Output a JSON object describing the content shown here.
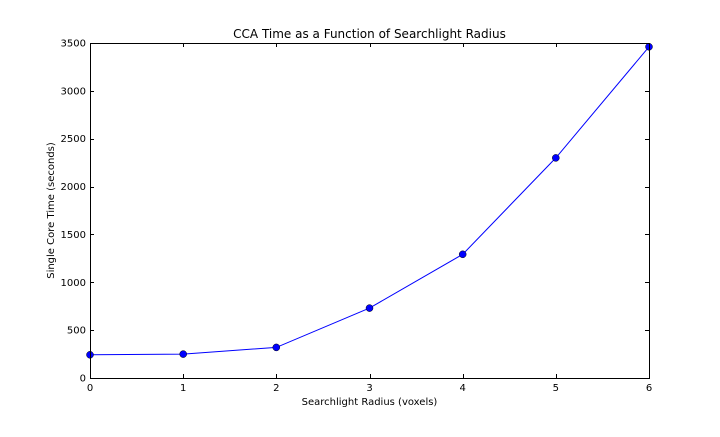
{
  "chart_data": {
    "type": "line",
    "title": "CCA Time as a Function of Searchlight Radius",
    "xlabel": "Searchlight Radius (voxels)",
    "ylabel": "Single Core Time (seconds)",
    "x": [
      0,
      1,
      2,
      3,
      4,
      5,
      6
    ],
    "series": [
      {
        "values": [
          242,
          250,
          320,
          730,
          1292,
          2300,
          3460
        ]
      }
    ],
    "xlim": [
      0,
      6
    ],
    "ylim": [
      0,
      3500
    ],
    "xticks": [
      "0",
      "1",
      "2",
      "3",
      "4",
      "5",
      "6"
    ],
    "yticks": [
      "0",
      "500",
      "1000",
      "1500",
      "2000",
      "2500",
      "3000",
      "3500"
    ],
    "grid": false,
    "line_color": "#0000ff",
    "marker": "circle"
  }
}
